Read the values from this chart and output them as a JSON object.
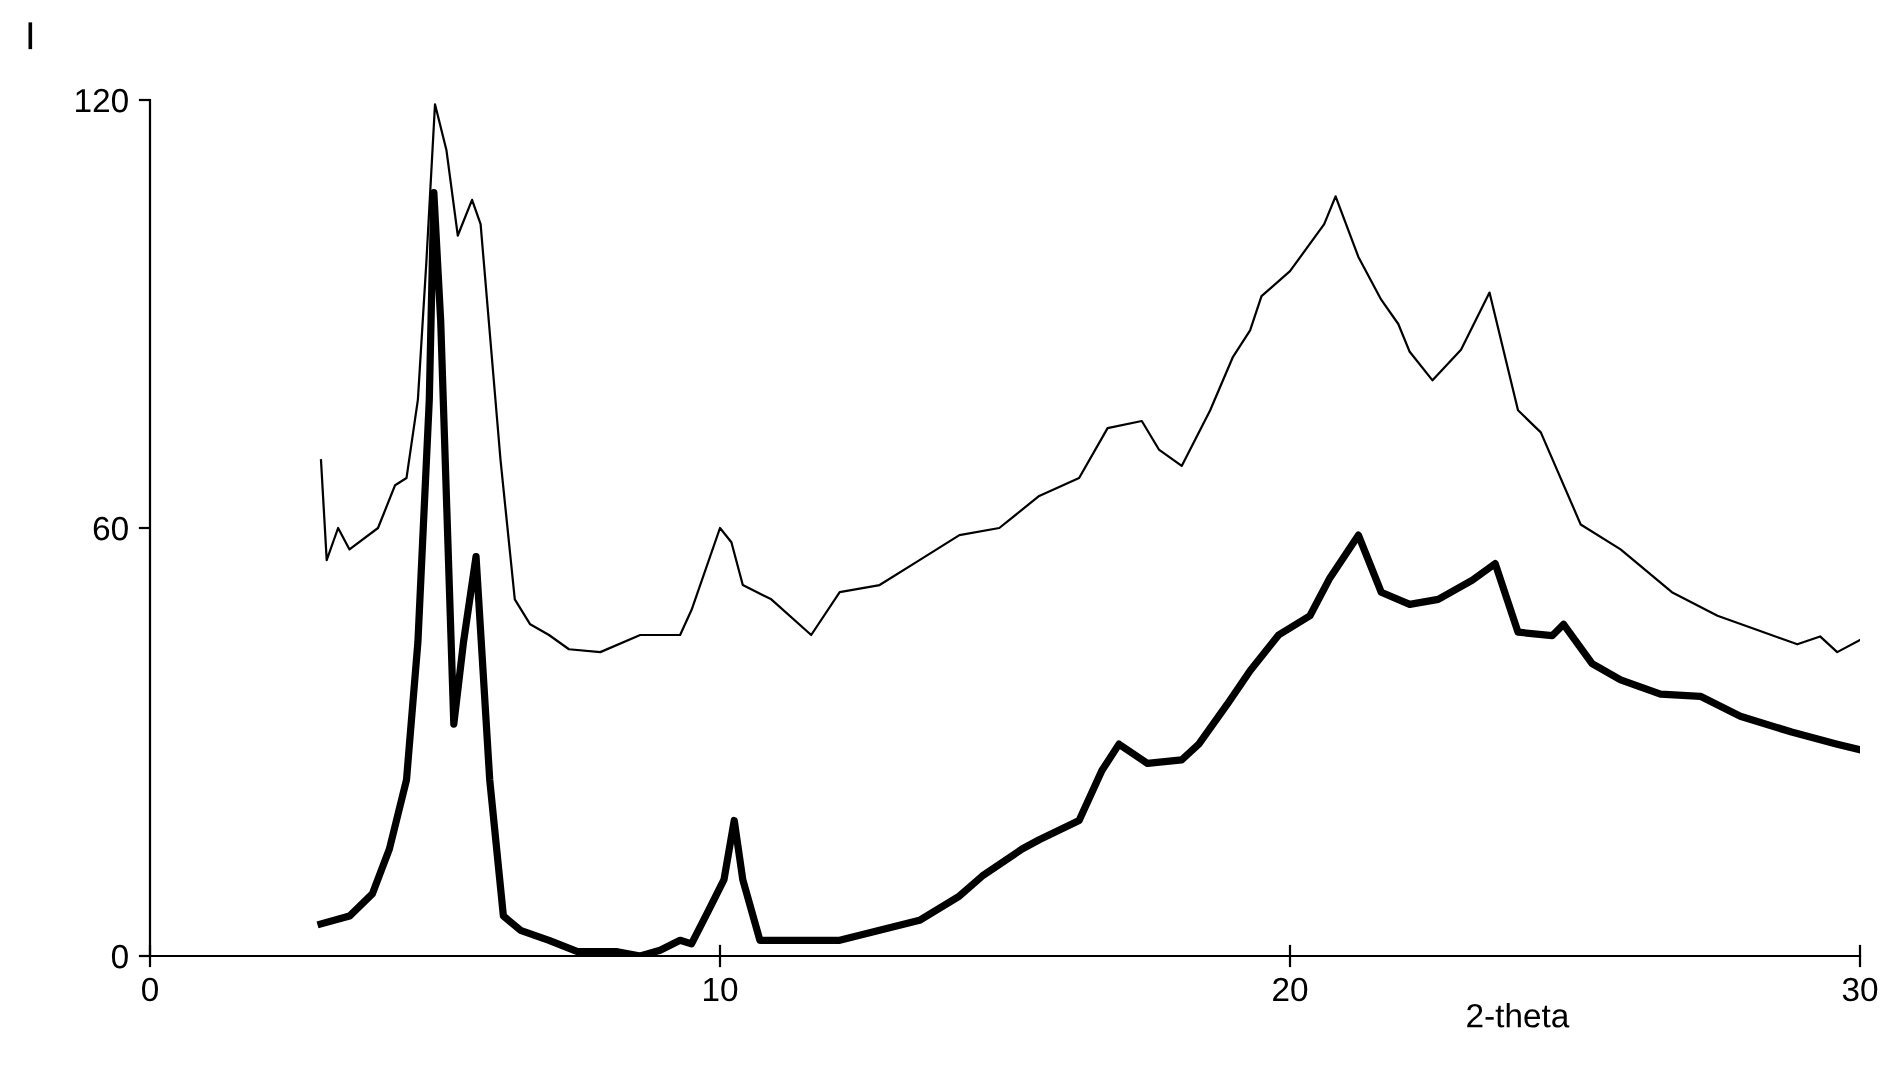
{
  "chart_data": {
    "type": "line",
    "xlabel": "2-theta",
    "ylabel": "I",
    "xlim": [
      0,
      30
    ],
    "xticks": [
      0,
      10,
      20,
      30
    ],
    "ylim": [
      0,
      120
    ],
    "yticks": [
      0,
      60,
      120
    ],
    "grid": false,
    "legend": false,
    "marker": "none",
    "line_style": "solid",
    "series": [
      {
        "color": "#000000",
        "x": [
          3.0,
          3.1,
          3.3,
          3.5,
          4.0,
          4.3,
          4.5,
          4.7,
          4.85,
          5.0,
          5.2,
          5.4,
          5.65,
          5.8,
          6.15,
          6.4,
          6.67,
          7.0,
          7.35,
          7.9,
          8.6,
          9.3,
          9.5,
          10.0,
          10.2,
          10.4,
          10.9,
          11.6,
          12.1,
          12.8,
          13.5,
          14.2,
          14.9,
          15.6,
          16.3,
          16.8,
          17.4,
          17.7,
          18.1,
          18.6,
          19.0,
          19.3,
          19.5,
          20.0,
          20.6,
          20.8,
          21.2,
          21.6,
          21.9,
          22.1,
          22.5,
          23.0,
          23.5,
          24.0,
          24.4,
          25.1,
          25.8,
          26.1,
          26.7,
          27.5,
          28.2,
          28.9,
          29.3,
          29.6,
          30.0
        ],
        "values": [
          69.5,
          55.5,
          60,
          57,
          60,
          66,
          67,
          78,
          97.5,
          119.4,
          113,
          101,
          106,
          102.6,
          69.5,
          50,
          46.5,
          45,
          43,
          42.6,
          45,
          45,
          48.5,
          60,
          58,
          52,
          50,
          45,
          51,
          52,
          55.5,
          59,
          60,
          64.5,
          67,
          74,
          75,
          71,
          68.7,
          76.5,
          84,
          87.7,
          92.5,
          96,
          102.6,
          106.5,
          98,
          92,
          88.6,
          84.7,
          80.7,
          85,
          93,
          76.5,
          73.4,
          60.5,
          57,
          55,
          51,
          47.7,
          45.7,
          43.7,
          44.8,
          42.6,
          44.3
        ]
      },
      {
        "color": "#000000",
        "x": [
          3.0,
          3.5,
          3.9,
          4.2,
          4.5,
          4.7,
          4.9,
          4.98,
          5.1,
          5.33,
          5.5,
          5.72,
          5.96,
          6.2,
          6.5,
          7.0,
          7.5,
          8.2,
          8.6,
          8.95,
          9.3,
          9.5,
          9.8,
          10.07,
          10.25,
          10.4,
          10.7,
          11.4,
          12.1,
          12.8,
          13.5,
          14.2,
          14.6,
          15.3,
          15.6,
          16.3,
          16.7,
          17.0,
          17.5,
          18.1,
          18.4,
          18.9,
          19.3,
          19.8,
          20.35,
          20.7,
          21.2,
          21.6,
          22.1,
          22.6,
          23.2,
          23.6,
          24.0,
          24.6,
          24.8,
          25.3,
          25.8,
          26.5,
          27.2,
          27.9,
          28.8,
          29.6,
          30.0
        ],
        "values": [
          4.5,
          5.6,
          8.7,
          15,
          24.7,
          44,
          78,
          107,
          89,
          32.5,
          44,
          56,
          24.7,
          5.6,
          3.6,
          2.2,
          0.6,
          0.6,
          0,
          0.8,
          2.2,
          1.7,
          6.4,
          10.7,
          19,
          10.7,
          2.2,
          2.2,
          2.2,
          3.6,
          5,
          8.4,
          11.2,
          15,
          16.3,
          19,
          26,
          29.7,
          27,
          27.5,
          29.7,
          35.3,
          40,
          45,
          47.7,
          53,
          59,
          51,
          49.3,
          50,
          52.7,
          55,
          45.4,
          44.9,
          46.5,
          41,
          38.7,
          36.7,
          36.4,
          33.6,
          31.4,
          29.7,
          28.9
        ]
      }
    ]
  }
}
